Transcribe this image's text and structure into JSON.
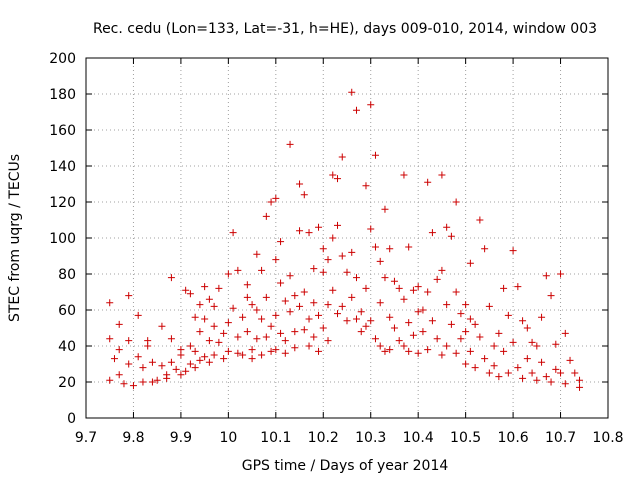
{
  "chart_data": {
    "type": "scatter",
    "title": "Rec. cedu (Lon=133, Lat=-31, h=HE), days 009-010, 2014, window 003",
    "xlabel": "GPS time / Days of year 2014",
    "ylabel": "STEC from uqrg / TECUs",
    "xlim": [
      9.7,
      10.8
    ],
    "ylim": [
      0,
      200
    ],
    "x_ticks": [
      "9.7",
      "9.8",
      "9.9",
      "10",
      "10.1",
      "10.2",
      "10.3",
      "10.4",
      "10.5",
      "10.6",
      "10.7",
      "10.8"
    ],
    "y_ticks": [
      "0",
      "20",
      "40",
      "60",
      "80",
      "100",
      "120",
      "140",
      "160",
      "180",
      "200"
    ],
    "grid": true,
    "marker": "+",
    "color": "#cc0000",
    "series": [
      {
        "points": [
          [
            9.75,
            64
          ],
          [
            9.75,
            44
          ],
          [
            9.75,
            21
          ],
          [
            9.76,
            33
          ],
          [
            9.77,
            52
          ],
          [
            9.77,
            38
          ],
          [
            9.77,
            24
          ],
          [
            9.78,
            19
          ],
          [
            9.79,
            68
          ],
          [
            9.79,
            43
          ],
          [
            9.79,
            30
          ],
          [
            9.8,
            18
          ],
          [
            9.81,
            57
          ],
          [
            9.81,
            34
          ],
          [
            9.82,
            28
          ],
          [
            9.82,
            20
          ],
          [
            9.83,
            40
          ],
          [
            9.83,
            43
          ],
          [
            9.84,
            20
          ],
          [
            9.84,
            31
          ],
          [
            9.85,
            21
          ],
          [
            9.86,
            29
          ],
          [
            9.86,
            51
          ],
          [
            9.87,
            24
          ],
          [
            9.87,
            22
          ],
          [
            9.88,
            78
          ],
          [
            9.88,
            44
          ],
          [
            9.88,
            31
          ],
          [
            9.89,
            27
          ],
          [
            9.9,
            35
          ],
          [
            9.9,
            24
          ],
          [
            9.9,
            38
          ],
          [
            9.91,
            71
          ],
          [
            9.91,
            26
          ],
          [
            9.92,
            69
          ],
          [
            9.92,
            40
          ],
          [
            9.92,
            30
          ],
          [
            9.93,
            56
          ],
          [
            9.93,
            37
          ],
          [
            9.93,
            28
          ],
          [
            9.94,
            63
          ],
          [
            9.94,
            48
          ],
          [
            9.94,
            32
          ],
          [
            9.95,
            73
          ],
          [
            9.95,
            55
          ],
          [
            9.95,
            34
          ],
          [
            9.96,
            66
          ],
          [
            9.96,
            43
          ],
          [
            9.96,
            31
          ],
          [
            9.97,
            62
          ],
          [
            9.97,
            51
          ],
          [
            9.97,
            35
          ],
          [
            9.98,
            72
          ],
          [
            9.98,
            42
          ],
          [
            9.99,
            47
          ],
          [
            9.99,
            33
          ],
          [
            10.0,
            80
          ],
          [
            10.0,
            53
          ],
          [
            10.0,
            37
          ],
          [
            10.01,
            103
          ],
          [
            10.01,
            61
          ],
          [
            10.02,
            82
          ],
          [
            10.02,
            45
          ],
          [
            10.02,
            36
          ],
          [
            10.03,
            56
          ],
          [
            10.03,
            35
          ],
          [
            10.04,
            74
          ],
          [
            10.04,
            67
          ],
          [
            10.04,
            48
          ],
          [
            10.05,
            63
          ],
          [
            10.05,
            38
          ],
          [
            10.05,
            33
          ],
          [
            10.06,
            91
          ],
          [
            10.06,
            60
          ],
          [
            10.06,
            44
          ],
          [
            10.07,
            82
          ],
          [
            10.07,
            55
          ],
          [
            10.07,
            35
          ],
          [
            10.08,
            112
          ],
          [
            10.08,
            67
          ],
          [
            10.08,
            45
          ],
          [
            10.09,
            120
          ],
          [
            10.09,
            51
          ],
          [
            10.09,
            37
          ],
          [
            10.1,
            122
          ],
          [
            10.1,
            88
          ],
          [
            10.1,
            57
          ],
          [
            10.1,
            38
          ],
          [
            10.11,
            98
          ],
          [
            10.11,
            75
          ],
          [
            10.11,
            47
          ],
          [
            10.12,
            65
          ],
          [
            10.12,
            43
          ],
          [
            10.12,
            36
          ],
          [
            10.13,
            152
          ],
          [
            10.13,
            79
          ],
          [
            10.13,
            59
          ],
          [
            10.14,
            68
          ],
          [
            10.14,
            48
          ],
          [
            10.14,
            39
          ],
          [
            10.15,
            130
          ],
          [
            10.15,
            104
          ],
          [
            10.15,
            62
          ],
          [
            10.16,
            124
          ],
          [
            10.16,
            70
          ],
          [
            10.16,
            49
          ],
          [
            10.17,
            103
          ],
          [
            10.17,
            55
          ],
          [
            10.17,
            40
          ],
          [
            10.18,
            83
          ],
          [
            10.18,
            64
          ],
          [
            10.18,
            45
          ],
          [
            10.19,
            106
          ],
          [
            10.19,
            57
          ],
          [
            10.19,
            37
          ],
          [
            10.2,
            94
          ],
          [
            10.2,
            81
          ],
          [
            10.2,
            50
          ],
          [
            10.21,
            88
          ],
          [
            10.21,
            63
          ],
          [
            10.21,
            43
          ],
          [
            10.22,
            135
          ],
          [
            10.22,
            100
          ],
          [
            10.22,
            71
          ],
          [
            10.23,
            133
          ],
          [
            10.23,
            107
          ],
          [
            10.23,
            58
          ],
          [
            10.24,
            145
          ],
          [
            10.24,
            90
          ],
          [
            10.24,
            62
          ],
          [
            10.25,
            81
          ],
          [
            10.25,
            54
          ],
          [
            10.26,
            181
          ],
          [
            10.26,
            92
          ],
          [
            10.26,
            67
          ],
          [
            10.27,
            171
          ],
          [
            10.27,
            78
          ],
          [
            10.27,
            55
          ],
          [
            10.28,
            59
          ],
          [
            10.28,
            48
          ],
          [
            10.29,
            129
          ],
          [
            10.29,
            72
          ],
          [
            10.29,
            51
          ],
          [
            10.3,
            174
          ],
          [
            10.3,
            105
          ],
          [
            10.3,
            54
          ],
          [
            10.31,
            146
          ],
          [
            10.31,
            95
          ],
          [
            10.31,
            44
          ],
          [
            10.32,
            87
          ],
          [
            10.32,
            64
          ],
          [
            10.32,
            40
          ],
          [
            10.33,
            116
          ],
          [
            10.33,
            78
          ],
          [
            10.33,
            37
          ],
          [
            10.34,
            94
          ],
          [
            10.34,
            56
          ],
          [
            10.34,
            38
          ],
          [
            10.35,
            76
          ],
          [
            10.35,
            50
          ],
          [
            10.36,
            72
          ],
          [
            10.36,
            43
          ],
          [
            10.37,
            135
          ],
          [
            10.37,
            66
          ],
          [
            10.37,
            40
          ],
          [
            10.38,
            95
          ],
          [
            10.38,
            53
          ],
          [
            10.38,
            37
          ],
          [
            10.39,
            71
          ],
          [
            10.39,
            46
          ],
          [
            10.4,
            73
          ],
          [
            10.4,
            59
          ],
          [
            10.4,
            36
          ],
          [
            10.41,
            60
          ],
          [
            10.41,
            48
          ],
          [
            10.42,
            131
          ],
          [
            10.42,
            70
          ],
          [
            10.42,
            38
          ],
          [
            10.43,
            103
          ],
          [
            10.43,
            54
          ],
          [
            10.44,
            77
          ],
          [
            10.44,
            44
          ],
          [
            10.45,
            135
          ],
          [
            10.45,
            82
          ],
          [
            10.45,
            35
          ],
          [
            10.46,
            106
          ],
          [
            10.46,
            63
          ],
          [
            10.46,
            40
          ],
          [
            10.47,
            101
          ],
          [
            10.47,
            52
          ],
          [
            10.48,
            120
          ],
          [
            10.48,
            70
          ],
          [
            10.48,
            36
          ],
          [
            10.49,
            58
          ],
          [
            10.49,
            44
          ],
          [
            10.5,
            63
          ],
          [
            10.5,
            48
          ],
          [
            10.5,
            30
          ],
          [
            10.51,
            86
          ],
          [
            10.51,
            55
          ],
          [
            10.51,
            37
          ],
          [
            10.52,
            52
          ],
          [
            10.52,
            28
          ],
          [
            10.53,
            110
          ],
          [
            10.53,
            45
          ],
          [
            10.54,
            94
          ],
          [
            10.54,
            33
          ],
          [
            10.55,
            62
          ],
          [
            10.55,
            25
          ],
          [
            10.56,
            40
          ],
          [
            10.56,
            29
          ],
          [
            10.57,
            47
          ],
          [
            10.57,
            23
          ],
          [
            10.58,
            72
          ],
          [
            10.58,
            37
          ],
          [
            10.59,
            57
          ],
          [
            10.59,
            25
          ],
          [
            10.6,
            93
          ],
          [
            10.6,
            42
          ],
          [
            10.61,
            73
          ],
          [
            10.61,
            28
          ],
          [
            10.62,
            54
          ],
          [
            10.62,
            22
          ],
          [
            10.63,
            50
          ],
          [
            10.63,
            33
          ],
          [
            10.64,
            42
          ],
          [
            10.64,
            25
          ],
          [
            10.65,
            40
          ],
          [
            10.65,
            21
          ],
          [
            10.66,
            56
          ],
          [
            10.66,
            31
          ],
          [
            10.67,
            79
          ],
          [
            10.67,
            23
          ],
          [
            10.68,
            68
          ],
          [
            10.68,
            20
          ],
          [
            10.69,
            41
          ],
          [
            10.69,
            27
          ],
          [
            10.7,
            80
          ],
          [
            10.7,
            25
          ],
          [
            10.71,
            47
          ],
          [
            10.71,
            19
          ],
          [
            10.72,
            32
          ],
          [
            10.73,
            25
          ],
          [
            10.74,
            21
          ],
          [
            10.74,
            17
          ]
        ]
      }
    ]
  }
}
